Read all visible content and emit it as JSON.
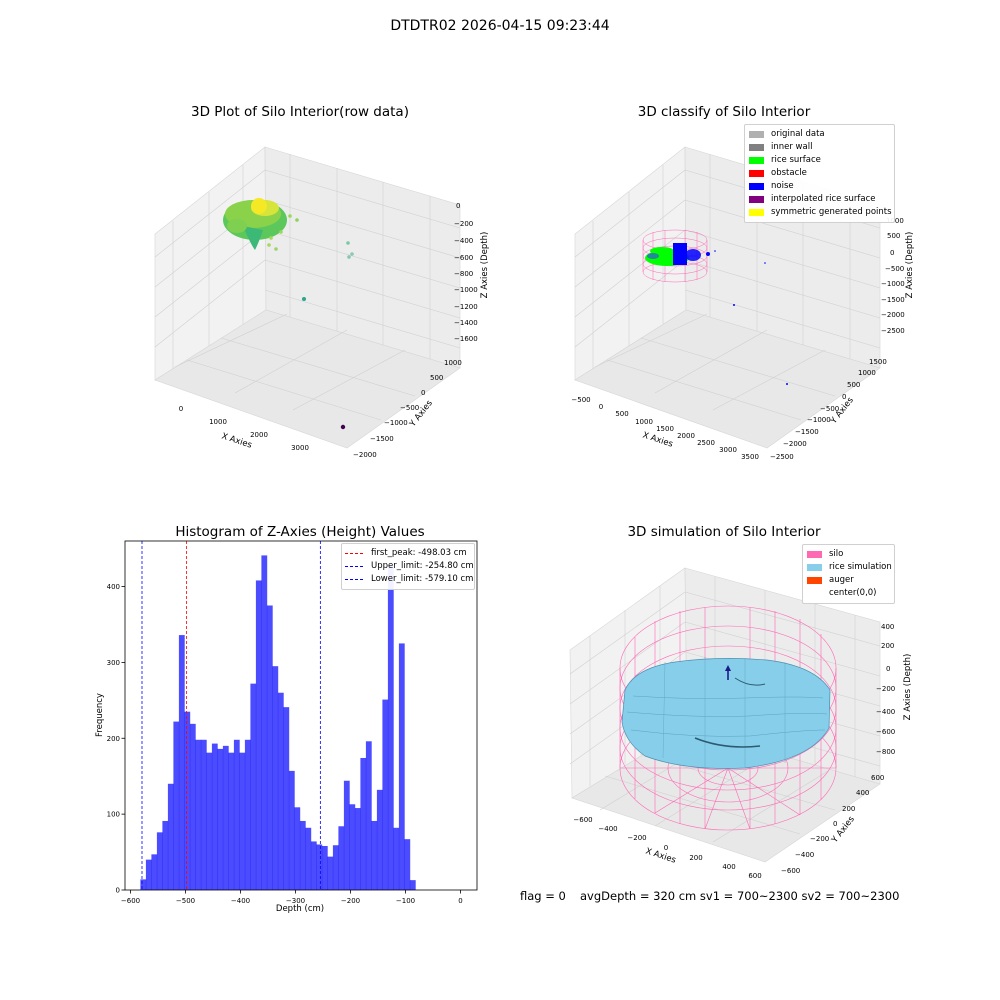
{
  "figure": {
    "suptitle": "DTDTR02 2026-04-15 09:23:44"
  },
  "panels": {
    "raw": {
      "title": "3D Plot of Silo Interior(row data)",
      "xlabel": "X Axies",
      "ylabel": "Y Axies",
      "zlabel": "Z Axies (Depth)",
      "xticks": [
        "0",
        "1000",
        "2000",
        "3000"
      ],
      "yticks": [
        "1000",
        "500",
        "0",
        "−500",
        "−1000",
        "−1500",
        "−2000"
      ],
      "zticks": [
        "0",
        "−200",
        "−400",
        "−600",
        "−800",
        "−1000",
        "−1200",
        "−1400",
        "−1600"
      ]
    },
    "classify": {
      "title": "3D classify of Silo Interior",
      "xlabel": "X Axies",
      "ylabel": "Y Axies",
      "zlabel": "Z Axies (Depth)",
      "xticks": [
        "−500",
        "0",
        "500",
        "1000",
        "1500",
        "2000",
        "2500",
        "3000",
        "3500"
      ],
      "yticks": [
        "1500",
        "1000",
        "500",
        "0",
        "−500",
        "−1000",
        "−1500",
        "−2000",
        "−2500"
      ],
      "zticks": [
        "1000",
        "500",
        "0",
        "−500",
        "−1000",
        "−1500",
        "−2000",
        "−2500"
      ],
      "legend": [
        {
          "label": "original data",
          "color": "#b0b0b0"
        },
        {
          "label": "inner wall",
          "color": "#808080"
        },
        {
          "label": "rice surface",
          "color": "#00ff00"
        },
        {
          "label": "obstacle",
          "color": "#ff0000"
        },
        {
          "label": "noise",
          "color": "#0000ff"
        },
        {
          "label": "interpolated rice surface",
          "color": "#800080"
        },
        {
          "label": "symmetric generated points",
          "color": "#ffff00"
        }
      ]
    },
    "histogram": {
      "title": "Histogram of Z-Axies (Height) Values",
      "xlabel": "Depth (cm)",
      "ylabel": "Frequency",
      "legend": [
        {
          "label": "first_peak: -498.03 cm",
          "color": "#ff0000"
        },
        {
          "label": "Upper_limit: -254.80 cm",
          "color": "#0000ff"
        },
        {
          "label": "Lower_limit: -579.10 cm",
          "color": "#0000ff"
        }
      ]
    },
    "simulation": {
      "title": "3D simulation of Silo Interior",
      "xlabel": "X Axies",
      "ylabel": "Y Axies",
      "zlabel": "Z Axies (Depth)",
      "xticks": [
        "−600",
        "−400",
        "−200",
        "0",
        "200",
        "400",
        "600"
      ],
      "yticks": [
        "600",
        "400",
        "200",
        "0",
        "−200",
        "−400",
        "−600"
      ],
      "zticks": [
        "400",
        "200",
        "0",
        "−200",
        "−400",
        "−600",
        "−800"
      ],
      "legend": [
        {
          "label": "silo",
          "color": "#ff69b4"
        },
        {
          "label": "rice simulation",
          "color": "#87ceeb"
        },
        {
          "label": "auger",
          "color": "#ff4500"
        },
        {
          "label": "center(0,0)",
          "color": "#ffffff"
        }
      ]
    }
  },
  "footer": {
    "flag": "flag = 0",
    "stats": "avgDepth = 320 cm  sv1 = 700~2300  sv2 = 700~2300"
  },
  "chart_data": [
    {
      "type": "scatter",
      "title": "3D Plot of Silo Interior(row data)",
      "xlabel": "X Axies",
      "ylabel": "Y Axies",
      "zlabel": "Z Axies (Depth)",
      "colormap": "viridis",
      "xlim": [
        -500,
        3500
      ],
      "ylim": [
        -2000,
        1300
      ],
      "zlim": [
        -1650,
        50
      ]
    },
    {
      "type": "scatter",
      "title": "3D classify of Silo Interior",
      "xlabel": "X Axies",
      "ylabel": "Y Axies",
      "zlabel": "Z Axies (Depth)",
      "xlim": [
        -600,
        3600
      ],
      "ylim": [
        -2600,
        1700
      ],
      "zlim": [
        -2650,
        1100
      ],
      "legend_position": "top-right"
    },
    {
      "type": "bar",
      "title": "Histogram of Z-Axies (Height) Values",
      "xlabel": "Depth (cm)",
      "ylabel": "Frequency",
      "xlim": [
        -610,
        30
      ],
      "ylim": [
        0,
        460
      ],
      "xticks": [
        -600,
        -500,
        -400,
        -300,
        -200,
        -100,
        0
      ],
      "yticks": [
        0,
        100,
        200,
        300,
        400
      ],
      "bin_start": -582,
      "bin_width": 10,
      "values": [
        14,
        40,
        47,
        76,
        91,
        140,
        222,
        336,
        235,
        219,
        198,
        198,
        181,
        193,
        186,
        190,
        181,
        198,
        181,
        198,
        272,
        408,
        441,
        375,
        295,
        260,
        241,
        157,
        109,
        91,
        82,
        64,
        60,
        58,
        44,
        59,
        84,
        144,
        113,
        108,
        174,
        196,
        91,
        132,
        251,
        427,
        82,
        325,
        67,
        13
      ],
      "bar_color": "#0000ff",
      "bar_alpha": 0.7,
      "vlines": [
        {
          "name": "first_peak",
          "x": -498.03,
          "color": "#ff0000"
        },
        {
          "name": "Upper_limit",
          "x": -254.8,
          "color": "#0000ff"
        },
        {
          "name": "Lower_limit",
          "x": -579.1,
          "color": "#0000ff"
        }
      ],
      "legend_position": "top-right"
    },
    {
      "type": "surface",
      "title": "3D simulation of Silo Interior",
      "xlabel": "X Axies",
      "ylabel": "Y Axies",
      "zlabel": "Z Axies (Depth)",
      "xlim": [
        -650,
        650
      ],
      "ylim": [
        -650,
        650
      ],
      "zlim": [
        -900,
        450
      ],
      "legend_position": "top-right"
    }
  ]
}
